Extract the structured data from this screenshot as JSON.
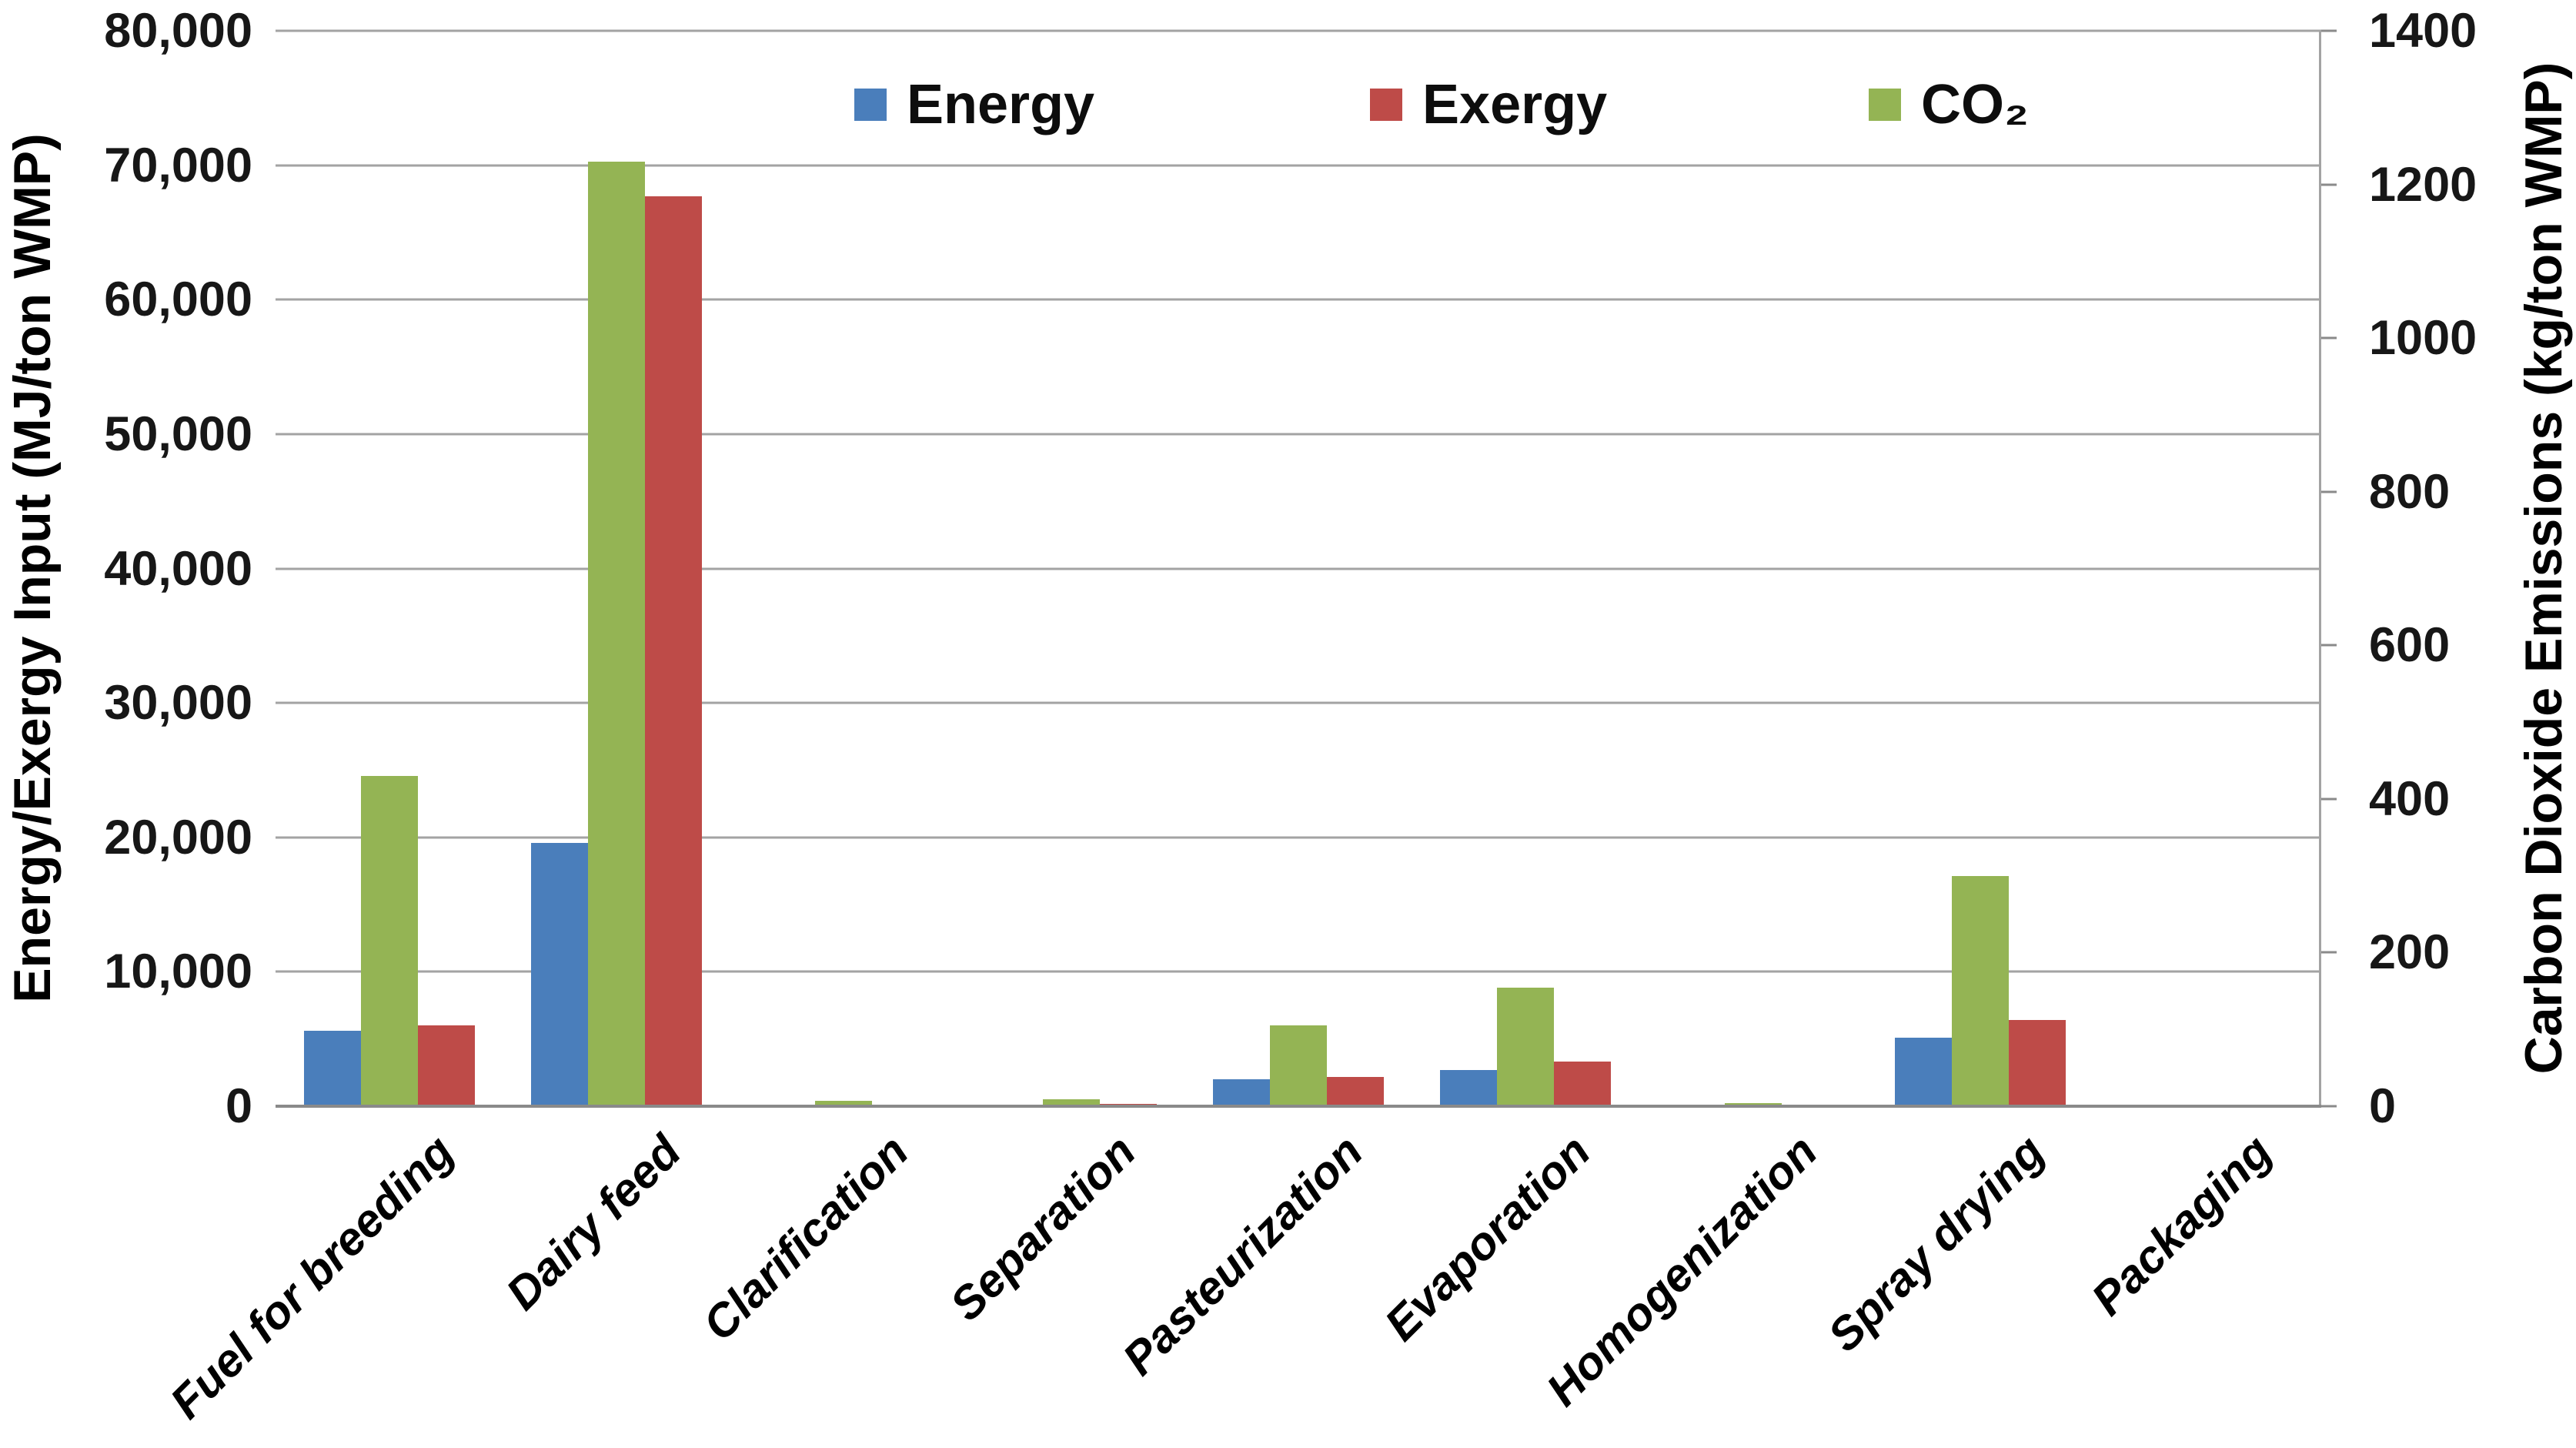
{
  "chart_data": {
    "type": "bar",
    "categories": [
      "Fuel for breeding",
      "Dairy feed",
      "Clarification",
      "Separation",
      "Pasteurization",
      "Evaporation",
      "Homogenization",
      "Spray drying",
      "Packaging"
    ],
    "series": [
      {
        "name": "Energy",
        "axis": "left",
        "color": "#4a7ebb",
        "values": [
          5600,
          19600,
          0,
          0,
          2000,
          2700,
          0,
          5100,
          0
        ]
      },
      {
        "name": "CO₂",
        "axis": "right",
        "color": "#94b454",
        "values": [
          430,
          1230,
          7,
          9,
          105,
          154,
          4,
          300,
          0
        ]
      },
      {
        "name": "Exergy",
        "axis": "left",
        "color": "#be4b48",
        "values": [
          6000,
          67700,
          0,
          200,
          2200,
          3300,
          0,
          6400,
          0
        ]
      }
    ],
    "bar_order_note": "Bars drawn left-to-right in each group: Energy (blue), CO2 (green), Exergy (red)",
    "left_axis": {
      "title": "Energy/Exergy Input (MJ/ton WMP)",
      "min": 0,
      "max": 80000,
      "tick_step": 10000,
      "tick_labels": [
        "0",
        "10,000",
        "20,000",
        "30,000",
        "40,000",
        "50,000",
        "60,000",
        "70,000",
        "80,000"
      ]
    },
    "right_axis": {
      "title": "Carbon Dioxide Emissions (kg/ton WMP)",
      "min": 0,
      "max": 1400,
      "tick_step": 200,
      "tick_labels": [
        "0",
        "200",
        "400",
        "600",
        "800",
        "1000",
        "1200",
        "1400"
      ]
    },
    "legend": {
      "entries": [
        "Energy",
        "Exergy",
        "CO₂"
      ],
      "colors": [
        "#4a7ebb",
        "#be4b48",
        "#94b454"
      ],
      "position": "top-inside"
    },
    "grid": {
      "gridline_color": "#a3a3a3",
      "axis_line_color": "#8a8a8a",
      "background": "#ffffff"
    }
  }
}
